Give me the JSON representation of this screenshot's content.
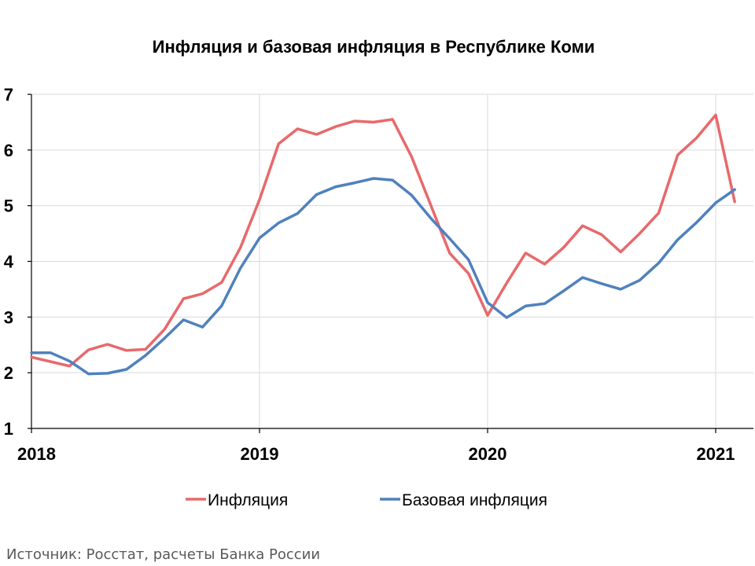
{
  "chart_data": {
    "type": "line",
    "title": "Инфляция и базовая инфляция в Республике Коми",
    "xlabel": "",
    "ylabel": "",
    "ylim": [
      1,
      7
    ],
    "yticks": [
      1,
      2,
      3,
      4,
      5,
      6,
      7
    ],
    "x_ticks": [
      "2018",
      "2019",
      "2020",
      "2021"
    ],
    "grid": true,
    "legend": "bottom",
    "x_start": "2018-01",
    "x_period": "month",
    "series": [
      {
        "name": "Инфляция",
        "color": "#e8696b",
        "values": [
          2.28,
          2.2,
          2.12,
          2.41,
          2.51,
          2.4,
          2.42,
          2.78,
          3.33,
          3.42,
          3.62,
          4.25,
          5.11,
          6.11,
          6.38,
          6.28,
          6.42,
          6.52,
          6.5,
          6.55,
          5.88,
          5.02,
          4.15,
          3.78,
          3.03,
          3.61,
          4.15,
          3.95,
          4.25,
          4.64,
          4.48,
          4.17,
          4.5,
          4.87,
          5.91,
          6.22,
          6.63,
          5.07
        ]
      },
      {
        "name": "Базовая инфляция",
        "color": "#4f81bd",
        "values": [
          2.36,
          2.36,
          2.21,
          1.98,
          1.99,
          2.06,
          2.31,
          2.62,
          2.95,
          2.82,
          3.2,
          3.88,
          4.42,
          4.69,
          4.86,
          5.2,
          5.34,
          5.41,
          5.49,
          5.46,
          5.19,
          4.78,
          4.41,
          4.03,
          3.26,
          2.99,
          3.2,
          3.24,
          3.47,
          3.71,
          3.6,
          3.5,
          3.66,
          3.97,
          4.39,
          4.7,
          5.05,
          5.29
        ]
      }
    ]
  },
  "source": "Источник: Росстат, расчеты Банка России"
}
